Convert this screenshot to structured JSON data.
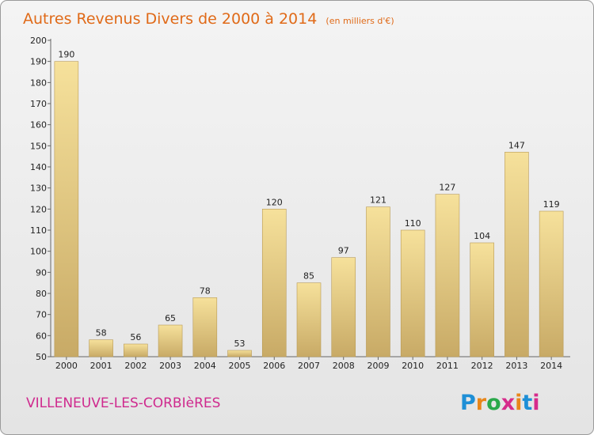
{
  "title": "Autres Revenus Divers de 2000 à 2014",
  "unit": "(en milliers d'€)",
  "commune": "VILLENEUVE-LES-CORBIèRES",
  "logo_text": "Proxiti",
  "colors": {
    "title": "#e06a18",
    "commune": "#cf2a8e",
    "bar_top": "#f6e19b",
    "bar_bottom": "#c8aa66",
    "bar_edge": "#b89a56"
  },
  "chart_data": {
    "type": "bar",
    "title": "Autres Revenus Divers de 2000 à 2014",
    "subtitle": "(en milliers d'€)",
    "categories": [
      "2000",
      "2001",
      "2002",
      "2003",
      "2004",
      "2005",
      "2006",
      "2007",
      "2008",
      "2009",
      "2010",
      "2011",
      "2012",
      "2013",
      "2014"
    ],
    "values": [
      190,
      58,
      56,
      65,
      78,
      53,
      120,
      85,
      97,
      121,
      110,
      127,
      104,
      147,
      119
    ],
    "ylim": [
      50,
      200
    ],
    "yticks": [
      50,
      60,
      70,
      80,
      90,
      100,
      110,
      120,
      130,
      140,
      150,
      160,
      170,
      180,
      190,
      200
    ],
    "grid": false,
    "xlabel": "",
    "ylabel": ""
  }
}
